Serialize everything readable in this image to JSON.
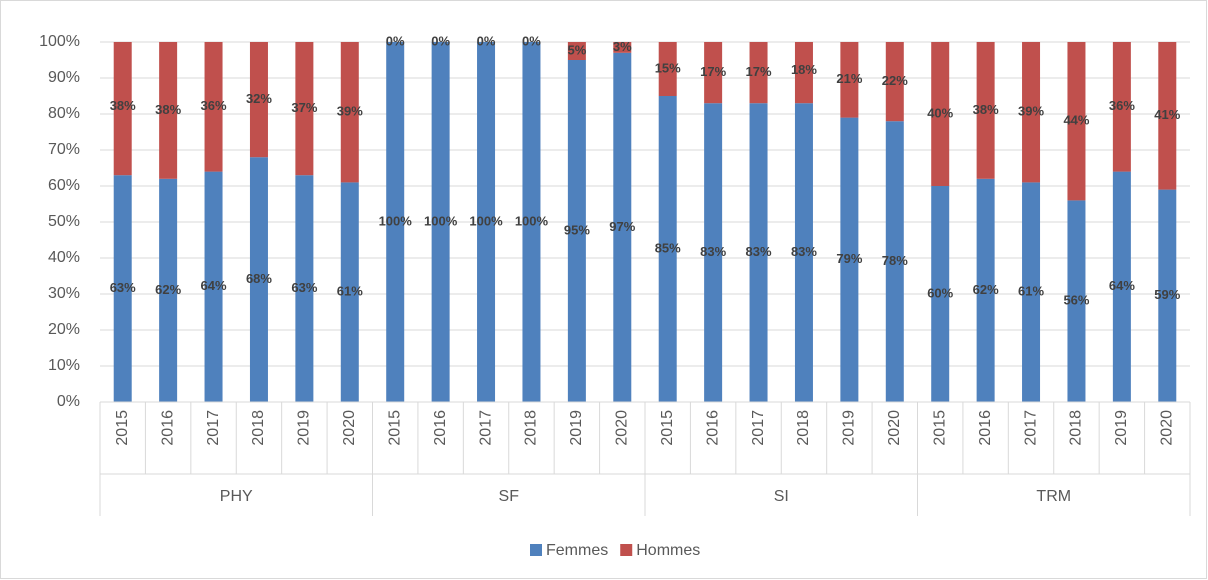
{
  "chart_data": {
    "type": "stacked_bar",
    "categories": [
      "2015",
      "2016",
      "2017",
      "2018",
      "2019",
      "2020",
      "2015",
      "2016",
      "2017",
      "2018",
      "2019",
      "2020",
      "2015",
      "2016",
      "2017",
      "2018",
      "2019",
      "2020",
      "2015",
      "2016",
      "2017",
      "2018",
      "2019",
      "2020"
    ],
    "groups": [
      "PHY",
      "SF",
      "SI",
      "TRM"
    ],
    "series": [
      {
        "name": "Femmes",
        "color": "#4f81bd",
        "values": [
          63,
          62,
          64,
          68,
          63,
          61,
          100,
          100,
          100,
          100,
          95,
          97,
          85,
          83,
          83,
          83,
          79,
          78,
          60,
          62,
          61,
          56,
          64,
          59
        ],
        "value_labels": [
          "63%",
          "62%",
          "64%",
          "68%",
          "63%",
          "61%",
          "100%",
          "100%",
          "100%",
          "100%",
          "95%",
          "97%",
          "85%",
          "83%",
          "83%",
          "83%",
          "79%",
          "78%",
          "60%",
          "62%",
          "61%",
          "56%",
          "64%",
          "59%"
        ]
      },
      {
        "name": "Hommes",
        "color": "#c0504d",
        "values": [
          38,
          38,
          36,
          32,
          37,
          39,
          0,
          0,
          0,
          0,
          5,
          3,
          15,
          17,
          17,
          18,
          21,
          22,
          40,
          38,
          39,
          44,
          36,
          41
        ],
        "value_labels": [
          "38%",
          "38%",
          "36%",
          "32%",
          "37%",
          "39%",
          "0%",
          "0%",
          "0%",
          "0%",
          "5%",
          "3%",
          "15%",
          "17%",
          "17%",
          "18%",
          "21%",
          "22%",
          "40%",
          "38%",
          "39%",
          "44%",
          "36%",
          "41%"
        ]
      }
    ],
    "ylim": [
      0,
      100
    ],
    "yticks": [
      {
        "value": 0,
        "label": "0%"
      },
      {
        "value": 10,
        "label": "10%"
      },
      {
        "value": 20,
        "label": "20%"
      },
      {
        "value": 30,
        "label": "30%"
      },
      {
        "value": 40,
        "label": "40%"
      },
      {
        "value": 50,
        "label": "50%"
      },
      {
        "value": 60,
        "label": "60%"
      },
      {
        "value": 70,
        "label": "70%"
      },
      {
        "value": 80,
        "label": "80%"
      },
      {
        "value": 90,
        "label": "90%"
      },
      {
        "value": 100,
        "label": "100%"
      }
    ],
    "grid": true,
    "legend": "bottom"
  }
}
